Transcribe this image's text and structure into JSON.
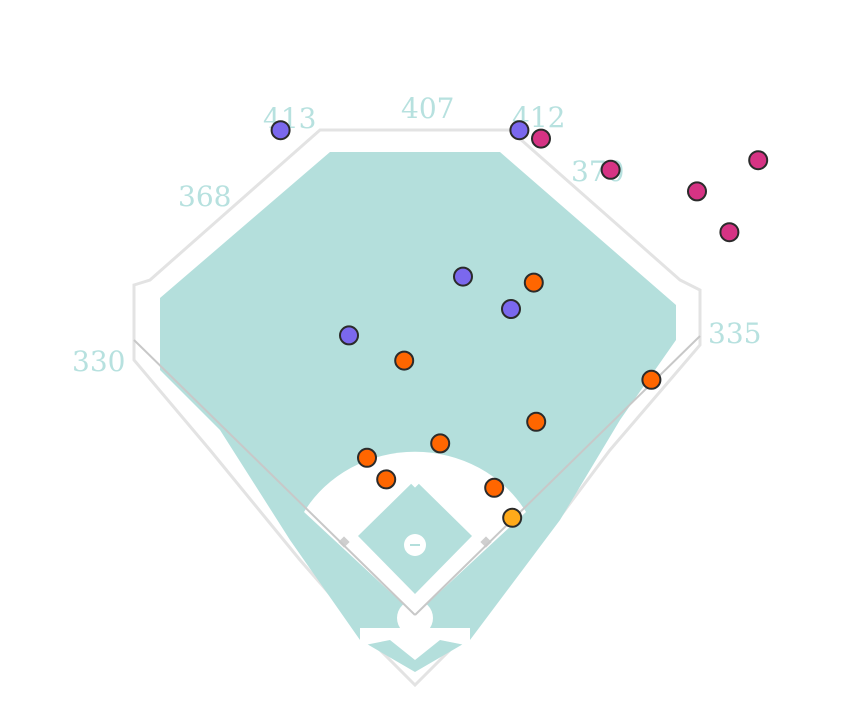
{
  "chart_data": {
    "type": "scatter",
    "title": "",
    "distance_labels": [
      "413",
      "407",
      "412",
      "368",
      "370",
      "330",
      "335"
    ],
    "colors": {
      "field": "#b4dfdc",
      "wall": "#f2f2f2",
      "wall_line": "#e3e3e3",
      "foul_line": "#c8c8c8",
      "infield_dirt": "#ffffff",
      "label": "#b7e1df"
    },
    "series": [
      {
        "color": "#7b68ee",
        "points": [
          {
            "x": -112,
            "y": 404
          },
          {
            "x": 87,
            "y": 404
          },
          {
            "x": 40,
            "y": 282
          },
          {
            "x": 80,
            "y": 255
          },
          {
            "x": -55,
            "y": 233
          }
        ]
      },
      {
        "color": "#d63384",
        "points": [
          {
            "x": 105,
            "y": 397
          },
          {
            "x": 163,
            "y": 371
          },
          {
            "x": 235,
            "y": 353
          },
          {
            "x": 286,
            "y": 379
          },
          {
            "x": 262,
            "y": 319
          }
        ]
      },
      {
        "color": "#ff6600",
        "points": [
          {
            "x": 99,
            "y": 277
          },
          {
            "x": -9,
            "y": 212
          },
          {
            "x": 197,
            "y": 196
          },
          {
            "x": 101,
            "y": 161
          },
          {
            "x": 21,
            "y": 143
          },
          {
            "x": -40,
            "y": 131
          },
          {
            "x": -24,
            "y": 113
          },
          {
            "x": 66,
            "y": 106
          }
        ]
      },
      {
        "color": "#ffaa1a",
        "points": [
          {
            "x": 81,
            "y": 81
          }
        ]
      }
    ]
  }
}
